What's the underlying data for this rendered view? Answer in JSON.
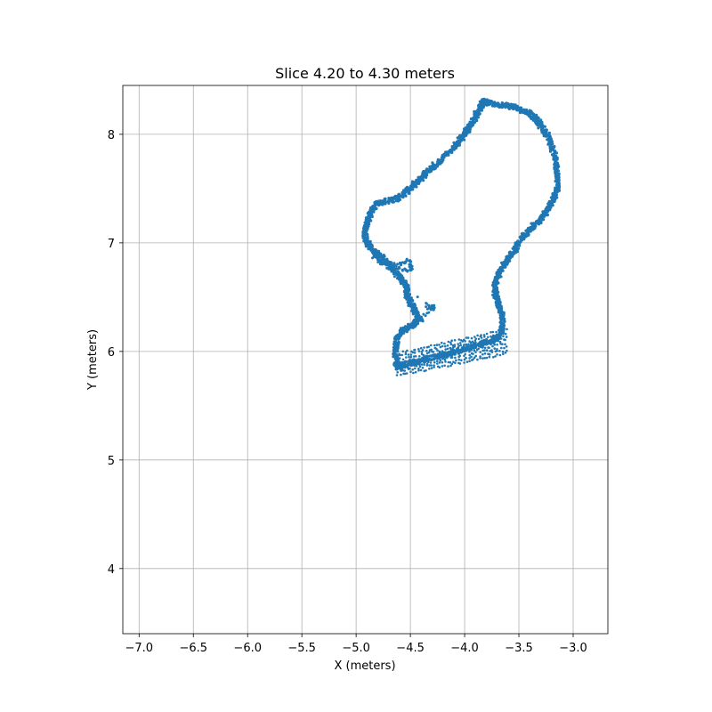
{
  "chart_data": {
    "type": "scatter",
    "title": "Slice 4.20 to 4.30 meters",
    "xlabel": "X (meters)",
    "ylabel": "Y (meters)",
    "xlim": [
      -7.15,
      -2.68
    ],
    "ylim": [
      3.4,
      8.45
    ],
    "xticks": [
      -7.0,
      -6.5,
      -6.0,
      -5.5,
      -5.0,
      -4.5,
      -4.0,
      -3.5,
      -3.0
    ],
    "xtick_labels": [
      "−7.0",
      "−6.5",
      "−6.0",
      "−5.5",
      "−5.0",
      "−4.5",
      "−4.0",
      "−3.5",
      "−3.0"
    ],
    "yticks": [
      4,
      5,
      6,
      7,
      8
    ],
    "ytick_labels": [
      "4",
      "5",
      "6",
      "7",
      "8"
    ],
    "grid": true,
    "series": [
      {
        "color": "#1f77b4",
        "outline": [
          [
            -3.82,
            8.3
          ],
          [
            -3.72,
            8.28
          ],
          [
            -3.6,
            8.26
          ],
          [
            -3.5,
            8.24
          ],
          [
            -3.42,
            8.2
          ],
          [
            -3.35,
            8.15
          ],
          [
            -3.3,
            8.08
          ],
          [
            -3.24,
            8.0
          ],
          [
            -3.2,
            7.9
          ],
          [
            -3.16,
            7.78
          ],
          [
            -3.15,
            7.68
          ],
          [
            -3.14,
            7.58
          ],
          [
            -3.15,
            7.48
          ],
          [
            -3.18,
            7.4
          ],
          [
            -3.22,
            7.32
          ],
          [
            -3.27,
            7.25
          ],
          [
            -3.33,
            7.19
          ],
          [
            -3.39,
            7.13
          ],
          [
            -3.45,
            7.07
          ],
          [
            -3.5,
            7.0
          ],
          [
            -3.55,
            6.92
          ],
          [
            -3.6,
            6.85
          ],
          [
            -3.65,
            6.78
          ],
          [
            -3.69,
            6.7
          ],
          [
            -3.72,
            6.62
          ],
          [
            -3.72,
            6.55
          ],
          [
            -3.7,
            6.48
          ],
          [
            -3.68,
            6.42
          ],
          [
            -3.66,
            6.34
          ],
          [
            -3.65,
            6.26
          ],
          [
            -3.66,
            6.18
          ],
          [
            -3.7,
            6.13
          ],
          [
            -3.75,
            6.1
          ],
          [
            -3.85,
            6.07
          ],
          [
            -3.95,
            6.04
          ],
          [
            -4.05,
            6.01
          ],
          [
            -4.15,
            5.98
          ],
          [
            -4.25,
            5.95
          ],
          [
            -4.35,
            5.93
          ],
          [
            -4.45,
            5.9
          ],
          [
            -4.55,
            5.88
          ],
          [
            -4.62,
            5.85
          ],
          [
            -4.64,
            5.95
          ],
          [
            -4.63,
            6.05
          ],
          [
            -4.62,
            6.12
          ],
          [
            -4.58,
            6.18
          ],
          [
            -4.52,
            6.22
          ],
          [
            -4.46,
            6.26
          ],
          [
            -4.43,
            6.32
          ],
          [
            -4.46,
            6.38
          ],
          [
            -4.5,
            6.45
          ],
          [
            -4.53,
            6.52
          ],
          [
            -4.54,
            6.6
          ],
          [
            -4.57,
            6.66
          ],
          [
            -4.62,
            6.72
          ],
          [
            -4.68,
            6.78
          ],
          [
            -4.74,
            6.84
          ],
          [
            -4.8,
            6.9
          ],
          [
            -4.86,
            6.95
          ],
          [
            -4.91,
            7.02
          ],
          [
            -4.92,
            7.1
          ],
          [
            -4.9,
            7.18
          ],
          [
            -4.87,
            7.26
          ],
          [
            -4.84,
            7.33
          ],
          [
            -4.78,
            7.37
          ],
          [
            -4.7,
            7.39
          ],
          [
            -4.62,
            7.41
          ],
          [
            -4.55,
            7.46
          ],
          [
            -4.48,
            7.52
          ],
          [
            -4.41,
            7.59
          ],
          [
            -4.34,
            7.66
          ],
          [
            -4.26,
            7.73
          ],
          [
            -4.18,
            7.8
          ],
          [
            -4.1,
            7.88
          ],
          [
            -4.04,
            7.95
          ],
          [
            -3.99,
            8.02
          ],
          [
            -3.95,
            8.08
          ],
          [
            -3.91,
            8.15
          ],
          [
            -3.87,
            8.22
          ],
          [
            -3.84,
            8.27
          ]
        ],
        "bumps": [
          [
            -4.85,
            6.88
          ],
          [
            -4.78,
            6.84
          ],
          [
            -4.7,
            6.82
          ],
          [
            -4.62,
            6.8
          ],
          [
            -4.56,
            6.82
          ],
          [
            -4.52,
            6.84
          ],
          [
            -4.5,
            6.8
          ],
          [
            -4.48,
            6.76
          ],
          [
            -4.52,
            6.74
          ],
          [
            -4.58,
            6.76
          ],
          [
            -4.65,
            6.78
          ],
          [
            -4.72,
            6.8
          ],
          [
            -4.8,
            6.82
          ],
          [
            -4.35,
            6.44
          ],
          [
            -4.33,
            6.4
          ],
          [
            -4.3,
            6.42
          ],
          [
            -4.28,
            6.38
          ],
          [
            -4.4,
            6.32
          ],
          [
            -4.38,
            6.28
          ],
          [
            -4.42,
            6.3
          ]
        ],
        "blob": {
          "x_start": -4.62,
          "x_end": -3.62,
          "y_top_start": 5.98,
          "y_top_end": 6.2,
          "y_bottom_start": 5.78,
          "y_bottom_end": 5.98
        }
      }
    ]
  }
}
